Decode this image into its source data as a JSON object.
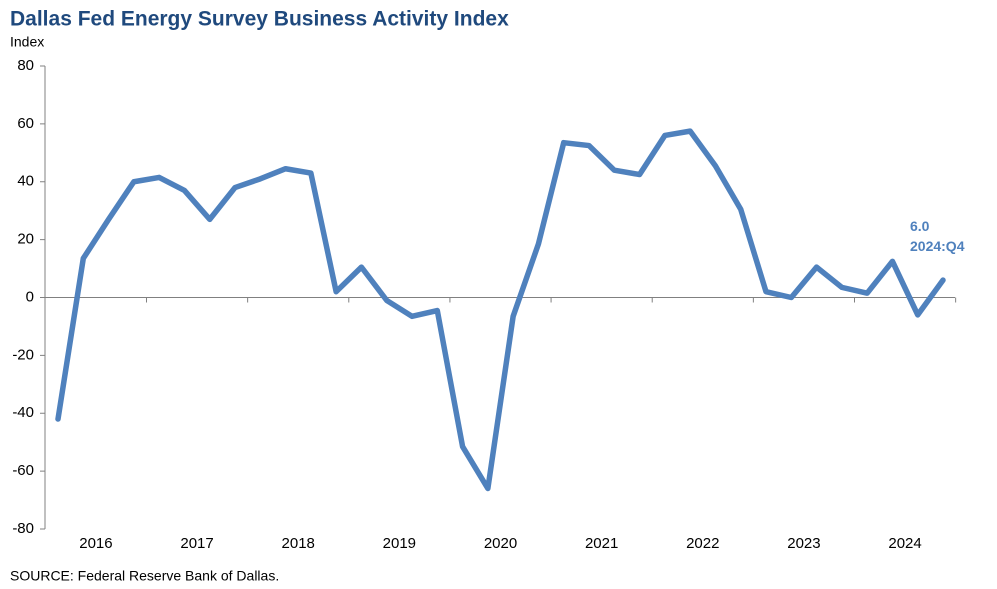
{
  "chart_data": {
    "type": "line",
    "title": "Dallas Fed Energy Survey Business Activity Index",
    "y_label": "Index",
    "source": "SOURCE:  Federal Reserve  Bank of Dallas.",
    "annotation": "2024:Q4",
    "x_labels": [
      "2016",
      "2017",
      "2018",
      "2019",
      "2020",
      "2021",
      "2022",
      "2023",
      "2024"
    ],
    "periods_per_label": 4,
    "series": [
      {
        "name": null,
        "color": "#4f81bd",
        "values": [
          -42,
          13.5,
          27,
          40,
          41.5,
          37,
          27,
          38,
          41,
          44.5,
          43,
          2,
          10.5,
          -1,
          -6.5,
          -4.5,
          -51.5,
          -66,
          -6.5,
          18.5,
          53.5,
          52.5,
          44,
          42.5,
          56,
          57.5,
          45.5,
          30.5,
          2,
          0,
          10.5,
          3.5,
          1.5,
          12.5,
          -6,
          6
        ],
        "value_labels": [
          null,
          null,
          null,
          null,
          null,
          null,
          null,
          null,
          null,
          null,
          null,
          null,
          null,
          null,
          null,
          null,
          null,
          null,
          null,
          null,
          null,
          null,
          null,
          null,
          null,
          null,
          null,
          null,
          null,
          null,
          null,
          null,
          null,
          null,
          null,
          "6.0"
        ]
      }
    ],
    "ylim": [
      -80,
      80
    ],
    "yticks": [
      -80,
      -60,
      -40,
      -20,
      0,
      20,
      40,
      60,
      80
    ]
  }
}
